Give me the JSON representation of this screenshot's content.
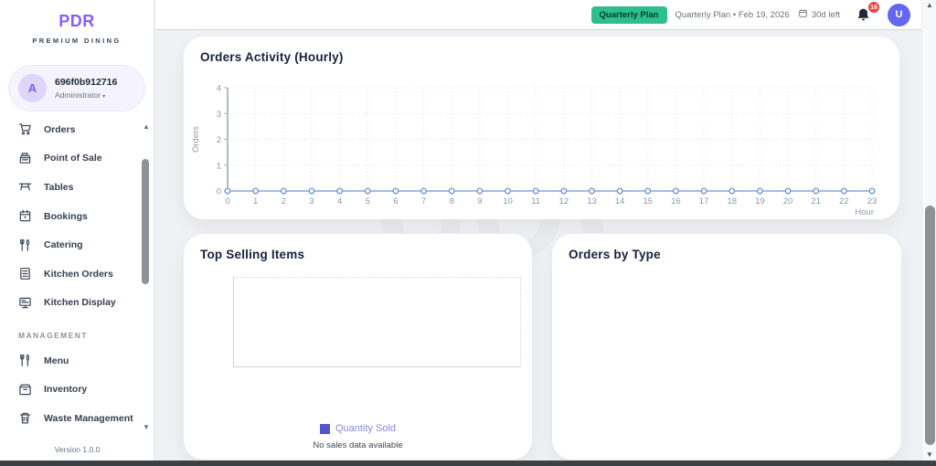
{
  "app": {
    "brand": "PDR",
    "tagline": "PREMIUM DINING",
    "version": "Version 1.0.0"
  },
  "sidebar": {
    "user": {
      "initial": "A",
      "name": "696f0b912716",
      "role": "Administrator"
    },
    "items": [
      {
        "label": "Orders",
        "icon": "cart"
      },
      {
        "label": "Point of Sale",
        "icon": "register"
      },
      {
        "label": "Tables",
        "icon": "table"
      },
      {
        "label": "Bookings",
        "icon": "calendar"
      },
      {
        "label": "Catering",
        "icon": "utensils"
      },
      {
        "label": "Kitchen Orders",
        "icon": "document"
      },
      {
        "label": "Kitchen Display",
        "icon": "display"
      }
    ],
    "management": {
      "label": "MANAGEMENT",
      "items": [
        {
          "label": "Menu",
          "icon": "utensils"
        },
        {
          "label": "Inventory",
          "icon": "box"
        },
        {
          "label": "Waste Management",
          "icon": "trash"
        }
      ]
    }
  },
  "header": {
    "plan_badge": "Quarterly Plan",
    "plan_text": "Quarterly Plan • Feb 19, 2026",
    "days_left": "30d left",
    "notification_count": "16",
    "avatar_initial": "U"
  },
  "cards": {
    "orders_activity": {
      "title": "Orders Activity (Hourly)"
    },
    "top_selling": {
      "title": "Top Selling Items",
      "empty_text": "No sales data available"
    },
    "orders_by_type": {
      "title": "Orders by Type"
    }
  },
  "chart_data": [
    {
      "type": "line",
      "title": "Orders Activity (Hourly)",
      "xlabel": "Hour",
      "ylabel": "Orders",
      "x": [
        0,
        1,
        2,
        3,
        4,
        5,
        6,
        7,
        8,
        9,
        10,
        11,
        12,
        13,
        14,
        15,
        16,
        17,
        18,
        19,
        20,
        21,
        22,
        23
      ],
      "values": [
        0,
        0,
        0,
        0,
        0,
        0,
        0,
        0,
        0,
        0,
        0,
        0,
        0,
        0,
        0,
        0,
        0,
        0,
        0,
        0,
        0,
        0,
        0,
        0
      ],
      "ylim": [
        0,
        4
      ],
      "yticks": [
        0,
        1,
        2,
        3,
        4
      ],
      "grid": true,
      "legend_position": "none",
      "line_color": "#82a9e6",
      "marker_color": "#5b8fd8"
    },
    {
      "type": "bar",
      "title": "Top Selling Items",
      "categories": [],
      "series": [
        {
          "name": "Quantity Sold",
          "values": []
        }
      ],
      "note": "No sales data available",
      "legend_position": "bottom",
      "legend_color": "#5654cc"
    },
    {
      "type": "pie",
      "title": "Orders by Type",
      "categories": [],
      "values": []
    }
  ],
  "colors": {
    "brand_purple": "#8b5cf6",
    "badge_green": "#2abf8b",
    "avatar_indigo": "#6366f1",
    "notification_red": "#ef4444",
    "chart_line_blue": "#82a9e6",
    "legend_purple": "#5654cc",
    "background": "#f0f1f4"
  }
}
